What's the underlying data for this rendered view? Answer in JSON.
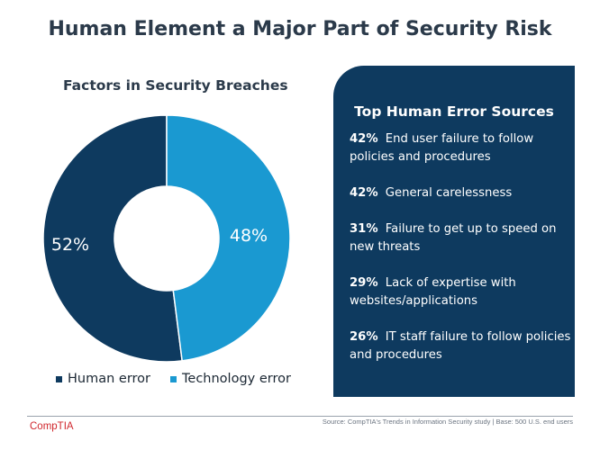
{
  "page": {
    "title": "Human Element a Major Part of Security Risk"
  },
  "chart_data": {
    "type": "pie",
    "title": "Factors in Security Breaches",
    "categories": [
      "Human error",
      "Technology error"
    ],
    "values": [
      52,
      48
    ],
    "value_labels": [
      "52%",
      "48%"
    ],
    "colors": [
      "#0e3a5f",
      "#1a99d1"
    ],
    "legend_position": "bottom",
    "style": "donut"
  },
  "panel": {
    "title": "Top Human Error Sources",
    "items": [
      {
        "pct": "42%",
        "text": "End user failure to follow policies and procedures"
      },
      {
        "pct": "42%",
        "text": "General carelessness"
      },
      {
        "pct": "31%",
        "text": "Failure to get up to speed on new threats"
      },
      {
        "pct": "29%",
        "text": "Lack of expertise with websites/applications"
      },
      {
        "pct": "26%",
        "text": "IT staff failure to follow policies and procedures"
      }
    ]
  },
  "footer": {
    "logo": "CompTIA",
    "source": "Source: CompTIA's Trends in Information Security study | Base: 500 U.S. end users"
  }
}
